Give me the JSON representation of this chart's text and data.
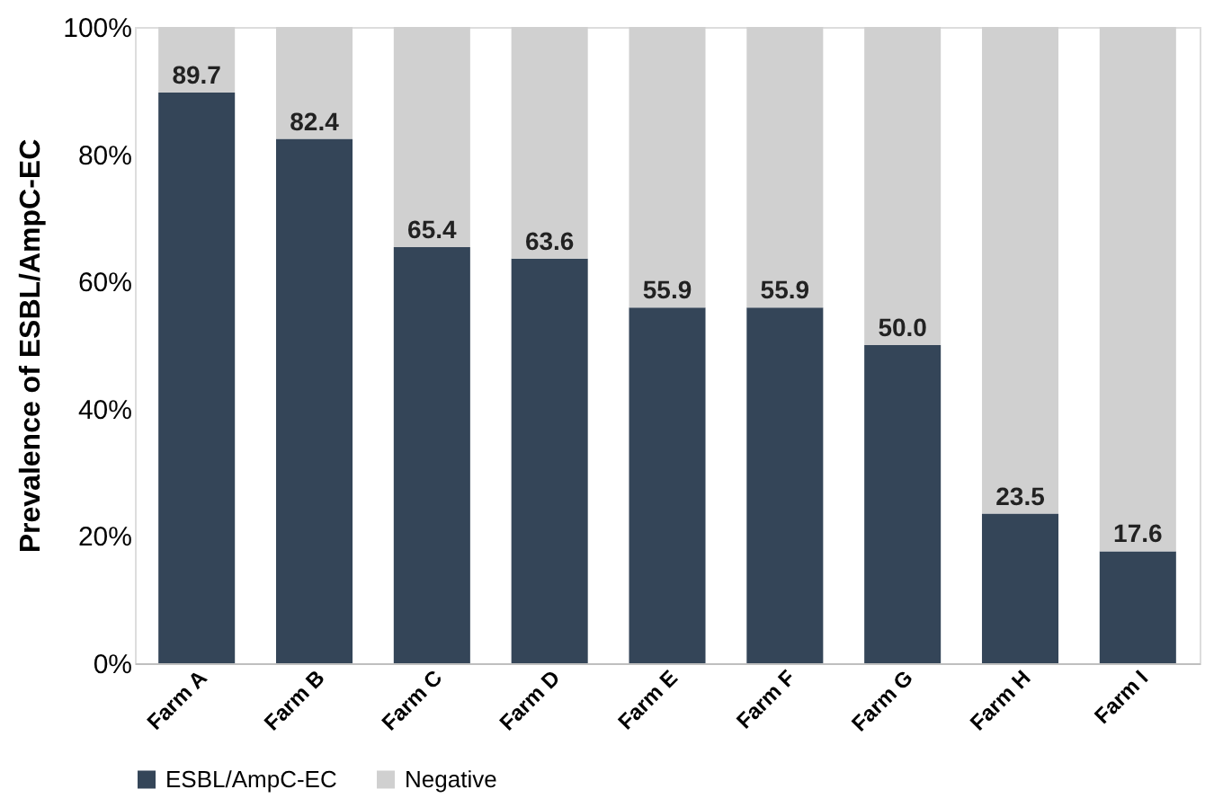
{
  "chart_data": {
    "type": "bar",
    "stacked": true,
    "ylabel": "Prevalence of ESBL/AmpC-EC",
    "categories": [
      "Farm A",
      "Farm B",
      "Farm C",
      "Farm D",
      "Farm E",
      "Farm F",
      "Farm G",
      "Farm H",
      "Farm I"
    ],
    "series": [
      {
        "name": "ESBL/AmpC-EC",
        "color": "#344558",
        "values": [
          89.7,
          82.4,
          65.4,
          63.6,
          55.9,
          55.9,
          50.0,
          23.5,
          17.6
        ],
        "value_labels": [
          "89.7",
          "82.4",
          "65.4",
          "63.6",
          "55.9",
          "55.9",
          "50.0",
          "23.5",
          "17.6"
        ]
      },
      {
        "name": "Negative",
        "color": "#d0d0d0",
        "values": [
          10.3,
          17.6,
          34.6,
          36.4,
          44.1,
          44.1,
          50.0,
          76.5,
          82.4
        ]
      }
    ],
    "ylim": [
      0,
      100
    ],
    "yticks": [
      {
        "value": 0,
        "label": "0%"
      },
      {
        "value": 20,
        "label": "20%"
      },
      {
        "value": 40,
        "label": "40%"
      },
      {
        "value": 60,
        "label": "60%"
      },
      {
        "value": 80,
        "label": "80%"
      },
      {
        "value": 100,
        "label": "100%"
      }
    ],
    "grid": false,
    "legend": "bottom"
  }
}
